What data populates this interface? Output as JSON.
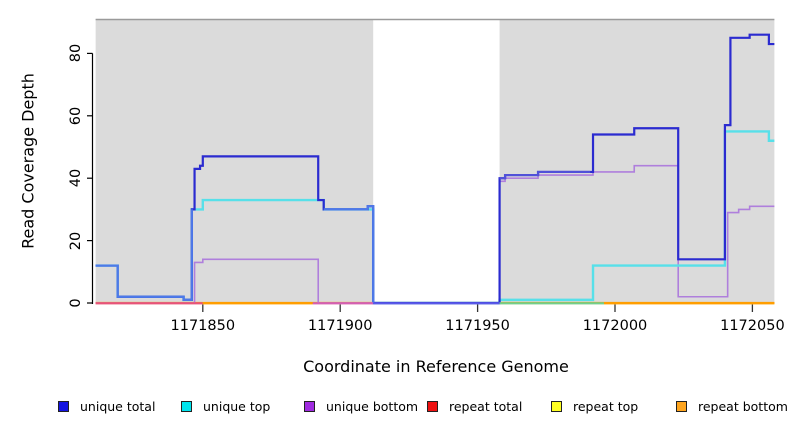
{
  "chart_data": {
    "type": "line",
    "title": "",
    "xlabel": "Coordinate in Reference Genome",
    "ylabel": "Read Coverage Depth",
    "xlim": [
      1171811,
      1172058
    ],
    "ylim": [
      0,
      91
    ],
    "grid": false,
    "legend_position": "bottom",
    "plot_background": "#DBDBDB",
    "no_data_region": {
      "from": 1171912,
      "to": 1171958,
      "color": "#FFFFFF"
    },
    "background_regions": [
      {
        "from": 1171811,
        "to": 1171912,
        "color": "#DBDBDB"
      },
      {
        "from": 1171958,
        "to": 1172058,
        "color": "#DBDBDB"
      }
    ],
    "top_border_color": "#9A9A9A",
    "x_ticks": [
      {
        "value": 1171850,
        "label": "1171850"
      },
      {
        "value": 1171900,
        "label": "1171900"
      },
      {
        "value": 1171950,
        "label": "1171950"
      },
      {
        "value": 1172000,
        "label": "1172000"
      },
      {
        "value": 1172050,
        "label": "1172050"
      }
    ],
    "y_ticks": [
      {
        "value": 0,
        "label": "0"
      },
      {
        "value": 20,
        "label": "20"
      },
      {
        "value": 40,
        "label": "40"
      },
      {
        "value": 60,
        "label": "60"
      },
      {
        "value": 80,
        "label": "80"
      }
    ],
    "series": [
      {
        "name": "repeat total",
        "color": "#E8537B",
        "width": 2.0,
        "points": [
          [
            1171811,
            0
          ],
          [
            1172058,
            0
          ]
        ]
      },
      {
        "name": "repeat top",
        "color": "#F2F200",
        "width": 1.6,
        "points": [
          [
            1171811,
            0
          ],
          [
            1172058,
            0
          ]
        ]
      },
      {
        "name": "repeat bottom",
        "color": "#FF9E00",
        "width": 2.2,
        "points": [
          [
            1171811,
            0
          ],
          [
            1172058,
            0
          ]
        ]
      },
      {
        "name": "unique bottom",
        "color": "#AF7FDC",
        "width": 1.6,
        "points": [
          [
            1171811,
            0
          ],
          [
            1171847,
            13
          ],
          [
            1171850,
            14
          ],
          [
            1171892,
            0
          ],
          [
            1171958,
            39
          ],
          [
            1171960,
            40
          ],
          [
            1171972,
            41
          ],
          [
            1171992,
            42
          ],
          [
            1172007,
            44
          ],
          [
            1172023,
            2
          ],
          [
            1172041,
            29
          ],
          [
            1172045,
            30
          ],
          [
            1172049,
            31
          ],
          [
            1172058,
            31
          ]
        ]
      },
      {
        "name": "unique top",
        "color": "#57E0E9",
        "width": 2.4,
        "points": [
          [
            1171811,
            12
          ],
          [
            1171819,
            2
          ],
          [
            1171843,
            1
          ],
          [
            1171846,
            30
          ],
          [
            1171850,
            33
          ],
          [
            1171894,
            30
          ],
          [
            1171912,
            0
          ],
          [
            1171958,
            1
          ],
          [
            1171992,
            12
          ],
          [
            1172040,
            55
          ],
          [
            1172056,
            52
          ],
          [
            1172058,
            52
          ]
        ]
      },
      {
        "name": "unique total",
        "color": "#2B2BD0",
        "width": 2.2,
        "points": [
          [
            1171811,
            12
          ],
          [
            1171819,
            2
          ],
          [
            1171843,
            1
          ],
          [
            1171846,
            30
          ],
          [
            1171847,
            43
          ],
          [
            1171849,
            44
          ],
          [
            1171850,
            47
          ],
          [
            1171892,
            33
          ],
          [
            1171894,
            30
          ],
          [
            1171910,
            31
          ],
          [
            1171912,
            0
          ],
          [
            1171958,
            40
          ],
          [
            1171960,
            41
          ],
          [
            1171972,
            42
          ],
          [
            1171992,
            54
          ],
          [
            1172007,
            56
          ],
          [
            1172023,
            14
          ],
          [
            1172040,
            57
          ],
          [
            1172042,
            85
          ],
          [
            1172049,
            86
          ],
          [
            1172056,
            83
          ],
          [
            1172058,
            83
          ]
        ],
        "overlap_with_top_ranges": [
          [
            1171811,
            1171846
          ],
          [
            1171894,
            1171912
          ]
        ],
        "overlap_with_bottom_ranges": [
          [
            1171958,
            1171991
          ]
        ]
      }
    ],
    "overlap_colors": {
      "top": "#4E79E8",
      "bottom": "#5151D8"
    },
    "baseline_segments": [
      {
        "from": 1171811,
        "to": 1171850,
        "color": "#E8537B"
      },
      {
        "from": 1171850,
        "to": 1171890,
        "color": "#FF9E00"
      },
      {
        "from": 1171890,
        "to": 1171912,
        "color": "#D45FB5"
      },
      {
        "from": 1171912,
        "to": 1171958,
        "color": "#5A5AE8"
      },
      {
        "from": 1171958,
        "to": 1171996,
        "color": "#6FCF8E"
      },
      {
        "from": 1171996,
        "to": 1172058,
        "color": "#FF9E00"
      }
    ],
    "legend": [
      {
        "label": "unique total",
        "color": "#1414E0"
      },
      {
        "label": "unique top",
        "color": "#00E5EE"
      },
      {
        "label": "unique bottom",
        "color": "#A02BE0"
      },
      {
        "label": "repeat total",
        "color": "#EE1111"
      },
      {
        "label": "repeat top",
        "color": "#FFFF22"
      },
      {
        "label": "repeat bottom",
        "color": "#FFA51E"
      }
    ]
  }
}
